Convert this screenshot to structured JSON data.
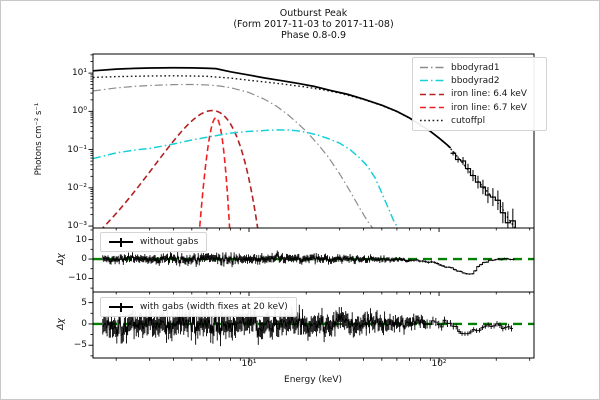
{
  "figure": {
    "background": "#ffffff",
    "frame_color": "#c8c8c8",
    "axis_color": "#000000"
  },
  "chart_data": {
    "type": "line",
    "title": {
      "line1": "Outburst Peak",
      "line2": "(Form 2017-11-03 to 2017-11-08)",
      "line3": "Phase 0.8-0.9"
    },
    "xlabel": "Energy (keV)",
    "xscale": "log",
    "xlim": [
      1.51,
      316
    ],
    "xticks": {
      "major": [
        10,
        100
      ],
      "labels": [
        "10¹",
        "10²"
      ],
      "minor": [
        2,
        3,
        4,
        5,
        6,
        7,
        8,
        9,
        20,
        30,
        40,
        50,
        60,
        70,
        80,
        90,
        200,
        300
      ]
    },
    "main_panel": {
      "ylabel": "Photons cm⁻² s⁻¹",
      "yscale": "log",
      "ylim": [
        0.00089,
        31.6
      ],
      "yticks": {
        "values": [
          10,
          1,
          0.1,
          0.01,
          0.001
        ],
        "labels": [
          "10¹",
          "10⁰",
          "10⁻¹",
          "10⁻²",
          "10⁻³"
        ]
      },
      "series": [
        {
          "name": "iron_line_6_4",
          "color": "#b22222",
          "dash": "dash",
          "width": 1.6,
          "gaussian": {
            "center": 6.4,
            "sigma": 1.25,
            "amplitude": 1.05
          }
        },
        {
          "name": "iron_line_6_7",
          "color": "#f02020",
          "dash": "dash",
          "width": 1.6,
          "gaussian": {
            "center": 6.7,
            "sigma": 0.33,
            "amplitude": 0.68
          }
        },
        {
          "name": "bbodyrad1",
          "color": "#8c8c8c",
          "dash": "dashdot",
          "width": 1.2,
          "points": [
            [
              1.51,
              3.4
            ],
            [
              2,
              4.1
            ],
            [
              2.5,
              4.5
            ],
            [
              3,
              4.75
            ],
            [
              4,
              5.0
            ],
            [
              5,
              5.05
            ],
            [
              6,
              4.9
            ],
            [
              7,
              4.6
            ],
            [
              8,
              4.15
            ],
            [
              10,
              3.1
            ],
            [
              12,
              2.1
            ],
            [
              14,
              1.35
            ],
            [
              16,
              0.82
            ],
            [
              18,
              0.49
            ],
            [
              20,
              0.3
            ],
            [
              23,
              0.14
            ],
            [
              26,
              0.066
            ],
            [
              30,
              0.023
            ],
            [
              34,
              0.0082
            ],
            [
              38,
              0.0031
            ],
            [
              42,
              0.00135
            ],
            [
              45,
              0.00085
            ]
          ]
        },
        {
          "name": "bbodyrad2",
          "color": "#17d0d8",
          "dash": "dashdot",
          "width": 1.5,
          "points": [
            [
              1.51,
              0.058
            ],
            [
              2,
              0.082
            ],
            [
              2.5,
              0.097
            ],
            [
              3,
              0.107
            ],
            [
              4,
              0.14
            ],
            [
              5,
              0.178
            ],
            [
              6,
              0.21
            ],
            [
              8,
              0.27
            ],
            [
              10,
              0.3
            ],
            [
              12,
              0.315
            ],
            [
              14,
              0.327
            ],
            [
              16,
              0.325
            ],
            [
              18,
              0.31
            ],
            [
              20,
              0.283
            ],
            [
              23,
              0.24
            ],
            [
              26,
              0.195
            ],
            [
              30,
              0.147
            ],
            [
              34,
              0.1
            ],
            [
              38,
              0.062
            ],
            [
              42,
              0.037
            ],
            [
              46,
              0.0185
            ],
            [
              50,
              0.0073
            ],
            [
              54,
              0.003
            ],
            [
              58,
              0.0013
            ],
            [
              61,
              0.00088
            ]
          ]
        },
        {
          "name": "cutoffpl",
          "color": "#1a1a1a",
          "dash": "dot",
          "width": 1.4,
          "points": [
            [
              1.51,
              7.7
            ],
            [
              2,
              8.1
            ],
            [
              3,
              8.4
            ],
            [
              4,
              8.5
            ],
            [
              5,
              8.4
            ],
            [
              6,
              8.25
            ],
            [
              8,
              7.4
            ],
            [
              10,
              6.5
            ],
            [
              12,
              5.9
            ],
            [
              15,
              5.2
            ],
            [
              20,
              4.3
            ],
            [
              25,
              3.6
            ],
            [
              30,
              3.0
            ],
            [
              40,
              2.05
            ],
            [
              50,
              1.42
            ],
            [
              60,
              0.98
            ],
            [
              70,
              0.66
            ],
            [
              80,
              0.435
            ],
            [
              90,
              0.3
            ],
            [
              100,
              0.2
            ],
            [
              110,
              0.134
            ],
            [
              120,
              0.084
            ],
            [
              130,
              0.051
            ],
            [
              142,
              0.0295
            ],
            [
              155,
              0.0177
            ],
            [
              170,
              0.0108
            ],
            [
              185,
              0.0067
            ],
            [
              200,
              0.0045
            ],
            [
              215,
              0.0029
            ],
            [
              230,
              0.00165
            ],
            [
              242,
              0.00115
            ],
            [
              252,
              0.00088
            ]
          ]
        },
        {
          "name": "total_model",
          "color": "#000000",
          "dash": "solid",
          "width": 1.7,
          "points": [
            [
              1.51,
              11.5
            ],
            [
              2,
              12.7
            ],
            [
              2.5,
              13.3
            ],
            [
              3,
              13.6
            ],
            [
              4,
              13.8
            ],
            [
              5,
              13.7
            ],
            [
              6,
              13.4
            ],
            [
              6.7,
              13.1
            ],
            [
              8,
              10.8
            ],
            [
              10,
              8.9
            ],
            [
              12,
              7.5
            ],
            [
              15,
              6.3
            ],
            [
              18,
              5.4
            ],
            [
              22,
              4.5
            ],
            [
              27,
              3.5
            ],
            [
              33,
              2.8
            ],
            [
              40,
              2.1
            ],
            [
              50,
              1.45
            ],
            [
              60,
              1.0
            ],
            [
              70,
              0.67
            ],
            [
              80,
              0.44
            ],
            [
              90,
              0.3
            ],
            [
              100,
              0.2
            ],
            [
              110,
              0.135
            ],
            [
              115,
              0.11
            ]
          ],
          "steps": {
            "start_keV": 115,
            "end_keV": 252,
            "bins": 13,
            "seed": 7,
            "jitter_decades": 0.05,
            "jitter_growth": 0.25,
            "err_decades_start": 0.06,
            "err_decades_end": 0.32
          }
        }
      ],
      "legend": {
        "position": "upper right",
        "entries": [
          {
            "label": "bbodyrad1",
            "series": "bbodyrad1"
          },
          {
            "label": "bbodyrad2",
            "series": "bbodyrad2"
          },
          {
            "label": "iron line: 6.4 keV",
            "series": "iron_line_6_4"
          },
          {
            "label": "iron line: 6.7 keV",
            "series": "iron_line_6_7"
          },
          {
            "label": "cutoffpl",
            "series": "cutoffpl"
          }
        ]
      }
    },
    "residual_panels": [
      {
        "name": "without_gabs",
        "legend_label": "without gabs",
        "ylabel": "Δχ",
        "ylim": [
          -17,
          16
        ],
        "ytick_values": [
          10,
          0,
          -10
        ],
        "ytick_labels": [
          "10",
          "0",
          "−10"
        ],
        "ytick_minor": [
          15,
          5,
          -5,
          -15
        ],
        "zero_line_color": "#008000",
        "seed": 42,
        "x_start_keV": 1.7,
        "dense_until_keV": 70,
        "x_end_keV": 250,
        "n_dense": 300,
        "n_sparse": 36,
        "envelope": [
          [
            1.7,
            0,
            1.7
          ],
          [
            2.5,
            0.2,
            1.9
          ],
          [
            4,
            -0.2,
            2.1
          ],
          [
            6,
            0,
            2.2
          ],
          [
            10,
            0,
            2.1
          ],
          [
            15,
            0.2,
            2.0
          ],
          [
            25,
            0,
            1.8
          ],
          [
            40,
            0,
            1.5
          ],
          [
            55,
            -0.3,
            1.1
          ],
          [
            70,
            -0.6,
            0.8
          ],
          [
            85,
            -1.3,
            0.7
          ],
          [
            100,
            -2.6,
            0.6
          ],
          [
            115,
            -4.6,
            0.5
          ],
          [
            130,
            -6.6,
            0.45
          ],
          [
            140,
            -7.8,
            0.4
          ],
          [
            152,
            -7.9,
            0.4
          ],
          [
            158,
            -4.6,
            0.5
          ],
          [
            170,
            -2.1,
            0.5
          ],
          [
            185,
            -0.9,
            0.5
          ],
          [
            200,
            -0.2,
            0.5
          ],
          [
            225,
            0.1,
            0.5
          ],
          [
            250,
            -0.3,
            0.5
          ]
        ]
      },
      {
        "name": "with_gabs",
        "legend_label": "with gabs (width fixes at 20 keV)",
        "ylabel": "Δχ",
        "ylim": [
          -8,
          7.5
        ],
        "ytick_values": [
          5,
          0,
          -5
        ],
        "ytick_labels": [
          "5",
          "0",
          "−5"
        ],
        "ytick_minor": [
          7.5,
          2.5,
          -2.5,
          -7.5
        ],
        "zero_line_color": "#008000",
        "seed": 1337,
        "x_start_keV": 1.7,
        "dense_until_keV": 85,
        "x_end_keV": 245,
        "n_dense": 300,
        "n_sparse": 30,
        "envelope": [
          [
            1.7,
            0,
            2.3
          ],
          [
            2.2,
            -0.4,
            2.5
          ],
          [
            3,
            0.4,
            2.6
          ],
          [
            4,
            -0.4,
            2.6
          ],
          [
            5,
            0.3,
            2.6
          ],
          [
            7,
            -0.3,
            2.7
          ],
          [
            9,
            0.4,
            2.5
          ],
          [
            12,
            -0.4,
            2.5
          ],
          [
            16,
            0.3,
            2.4
          ],
          [
            22,
            -0.2,
            2.3
          ],
          [
            30,
            0.3,
            2.2
          ],
          [
            40,
            -0.3,
            2.0
          ],
          [
            50,
            0.5,
            1.8
          ],
          [
            60,
            -0.2,
            1.5
          ],
          [
            70,
            0.3,
            1.3
          ],
          [
            85,
            0.5,
            1.2
          ],
          [
            100,
            -0.2,
            1.0
          ],
          [
            110,
            0.8,
            0.9
          ],
          [
            120,
            -0.5,
            0.8
          ],
          [
            130,
            -2.2,
            0.6
          ],
          [
            140,
            -2.6,
            0.55
          ],
          [
            150,
            -1.8,
            0.6
          ],
          [
            165,
            -0.9,
            0.6
          ],
          [
            180,
            -0.3,
            0.65
          ],
          [
            200,
            0.2,
            0.7
          ],
          [
            220,
            -0.5,
            0.75
          ],
          [
            240,
            -0.6,
            0.8
          ]
        ]
      }
    ]
  }
}
